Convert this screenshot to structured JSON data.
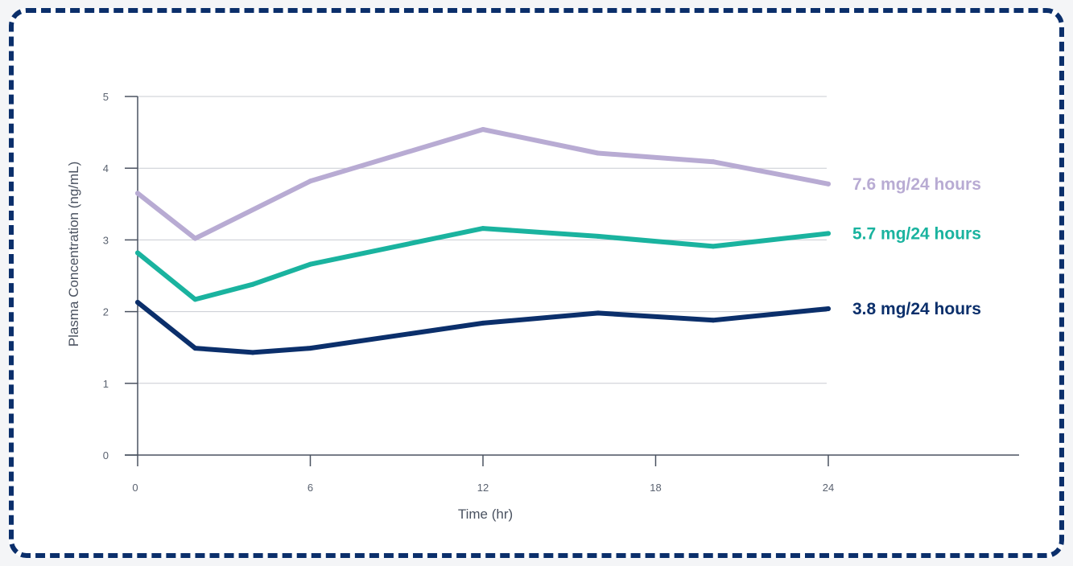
{
  "chart_data": {
    "type": "line",
    "xlabel": "Time (hr)",
    "ylabel": "Plasma Concentration (ng/mL)",
    "xlim": [
      0,
      30
    ],
    "ylim": [
      0,
      5
    ],
    "x_ticks": [
      "0",
      "6",
      "12",
      "18",
      "24"
    ],
    "x_tick_values": [
      0,
      6,
      12,
      18,
      24
    ],
    "y_ticks": [
      "0",
      "1",
      "2",
      "3",
      "4",
      "5"
    ],
    "y_tick_values": [
      0,
      1,
      2,
      3,
      4,
      5
    ],
    "grid": "horizontal",
    "series": [
      {
        "name": "7.6 mg/24 hours",
        "color": "#b8abd3",
        "x": [
          0,
          2,
          6,
          12,
          16,
          20,
          24
        ],
        "y": [
          3.65,
          3.02,
          3.82,
          4.54,
          4.21,
          4.09,
          3.78
        ]
      },
      {
        "name": "5.7 mg/24 hours",
        "color": "#1ab39f",
        "x": [
          0,
          2,
          4,
          6,
          12,
          16,
          20,
          24
        ],
        "y": [
          2.82,
          2.17,
          2.38,
          2.66,
          3.16,
          3.05,
          2.91,
          3.09
        ]
      },
      {
        "name": "3.8 mg/24 hours",
        "color": "#0b2f6b",
        "x": [
          0,
          2,
          4,
          6,
          12,
          16,
          20,
          24
        ],
        "y": [
          2.13,
          1.49,
          1.43,
          1.49,
          1.84,
          1.98,
          1.88,
          2.04
        ]
      }
    ]
  },
  "colors": {
    "border": "#0b2f6b",
    "axis": "#4a5260",
    "grid": "#c9ccd2"
  }
}
